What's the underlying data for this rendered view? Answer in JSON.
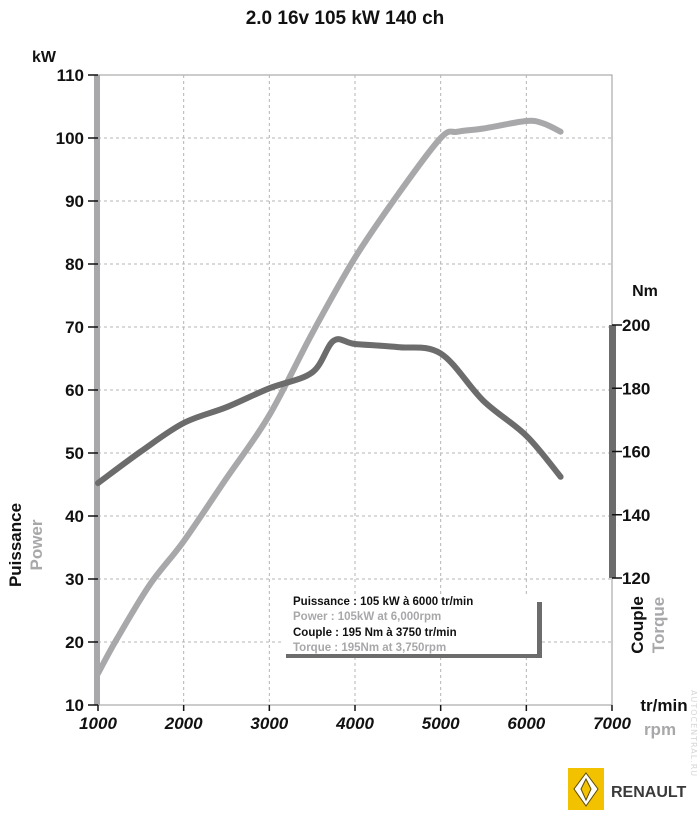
{
  "chart_data": {
    "type": "line",
    "title": "2.0 16v 105 kW 140 ch",
    "x_axis": {
      "unit_fr": "tr/min",
      "unit_en": "rpm",
      "range": [
        1000,
        7000
      ],
      "ticks": [
        1000,
        2000,
        3000,
        4000,
        5000,
        6000,
        7000
      ]
    },
    "y_left": {
      "unit": "kW",
      "label_fr": "Puissance",
      "label_en": "Power",
      "range": [
        10,
        110
      ],
      "ticks": [
        10,
        20,
        30,
        40,
        50,
        60,
        70,
        80,
        90,
        100,
        110
      ]
    },
    "y_right": {
      "unit": "Nm",
      "label_fr": "Couple",
      "label_en": "Torque",
      "range": [
        120,
        200
      ],
      "ticks": [
        120,
        140,
        160,
        180,
        200
      ]
    },
    "grid": true,
    "series": [
      {
        "name": "Power",
        "axis": "left",
        "color": "#a8a8ab",
        "x": [
          1000,
          1200,
          1600,
          2000,
          2500,
          3000,
          3500,
          4000,
          4500,
          5000,
          5200,
          5500,
          6000,
          6200,
          6400
        ],
        "y": [
          15,
          20,
          29,
          36,
          46,
          56,
          69,
          81,
          91,
          100,
          101,
          101.5,
          102.7,
          102.3,
          101
        ]
      },
      {
        "name": "Torque",
        "axis": "right",
        "color": "#6c6c6c",
        "x": [
          1000,
          1500,
          2000,
          2500,
          3000,
          3500,
          3750,
          4000,
          4500,
          5000,
          5500,
          6000,
          6400
        ],
        "y": [
          150,
          160,
          169,
          174,
          180,
          185,
          195,
          194,
          193,
          191,
          176,
          165,
          152
        ]
      }
    ],
    "legend": {
      "position": "bottom-center",
      "lines": [
        {
          "text": "Puissance : 105 kW à 6000 tr/min",
          "color": "#111111"
        },
        {
          "text": "Power : 105kW at 6,000rpm",
          "color": "#a8a8ab"
        },
        {
          "text": "Couple : 195 Nm à 3750 tr/min",
          "color": "#111111"
        },
        {
          "text": "Torque : 195Nm at 3,750rpm",
          "color": "#a8a8ab"
        }
      ]
    }
  },
  "brand": {
    "name": "RENAULT",
    "logo_color": "#f2c200",
    "watermark": "AUTOCENTRAL.RU"
  }
}
